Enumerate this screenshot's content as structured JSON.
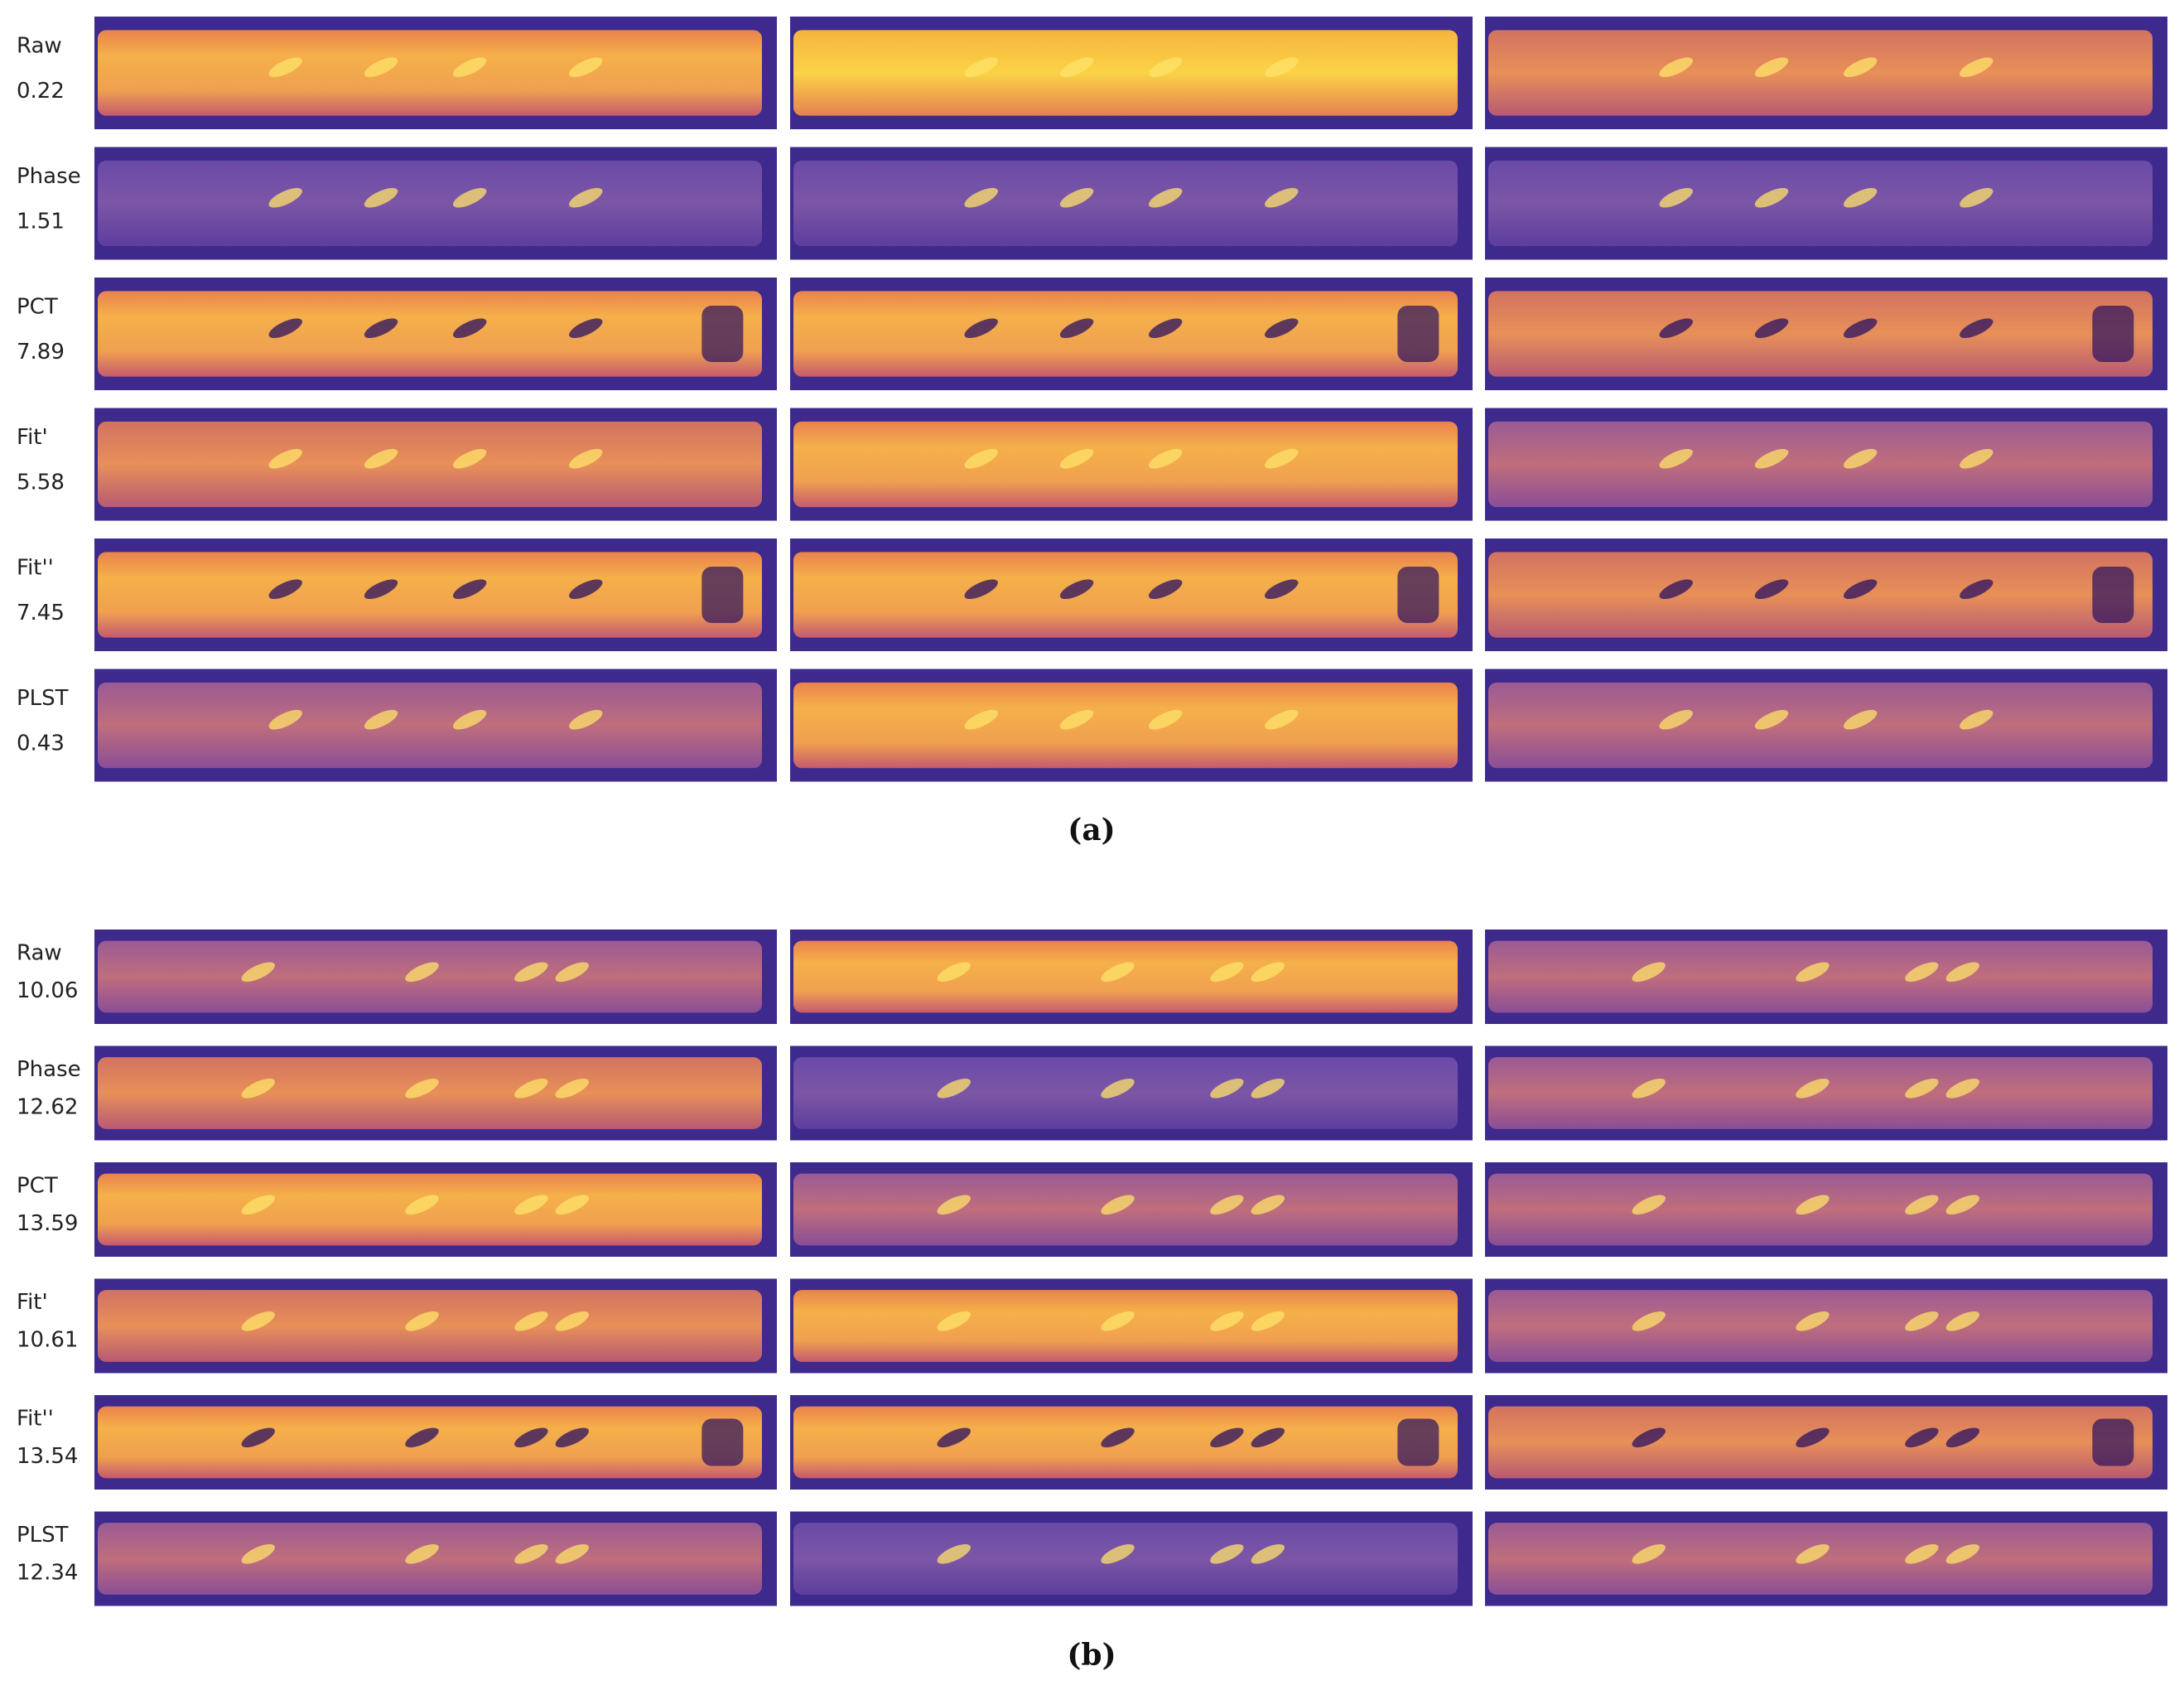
{
  "panels": [
    {
      "caption": "(a)",
      "rows": [
        {
          "label": "Raw",
          "value": "0.22"
        },
        {
          "label": "Phase",
          "value": "1.51"
        },
        {
          "label": "PCT",
          "value": "7.89"
        },
        {
          "label": "Fit'",
          "value": "5.58"
        },
        {
          "label": "Fit''",
          "value": "7.45"
        },
        {
          "label": "PLST",
          "value": "0.43"
        }
      ]
    },
    {
      "caption": "(b)",
      "rows": [
        {
          "label": "Raw",
          "value": "10.06"
        },
        {
          "label": "Phase",
          "value": "12.62"
        },
        {
          "label": "PCT",
          "value": "13.59"
        },
        {
          "label": "Fit'",
          "value": "10.61"
        },
        {
          "label": "Fit''",
          "value": "13.54"
        },
        {
          "label": "PLST",
          "value": "12.34"
        }
      ]
    }
  ]
}
